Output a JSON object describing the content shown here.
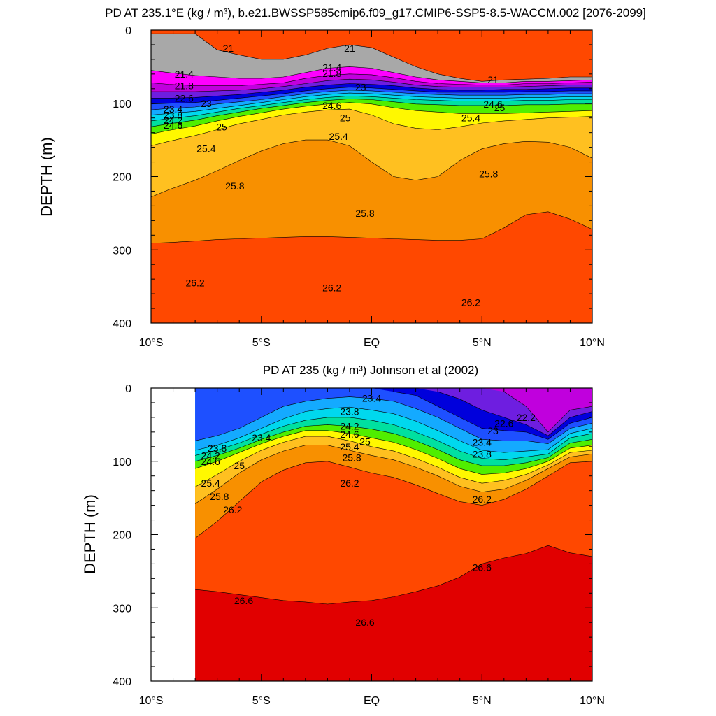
{
  "chart_data": [
    {
      "type": "contour",
      "title": "PD AT 235.1°E (kg / m³), b.e21.BWSSP585cmip6.f09_g17.CMIP6-SSP5-8.5-WACCM.002 [2076-2099]",
      "ylabel": "DEPTH (m)",
      "xlabel": "",
      "xlim": [
        -10,
        10
      ],
      "ylim": [
        0,
        400
      ],
      "y_inverted": true,
      "x_ticks": [
        {
          "v": -10,
          "label": "10°S"
        },
        {
          "v": -5,
          "label": "5°S"
        },
        {
          "v": 0,
          "label": "EQ"
        },
        {
          "v": 5,
          "label": "5°N"
        },
        {
          "v": 10,
          "label": "10°N"
        }
      ],
      "y_ticks": [
        0,
        100,
        200,
        300,
        400
      ],
      "x": [
        -10,
        -9.2,
        -8,
        -7,
        -6,
        -5,
        -4,
        -3,
        -2,
        -1,
        0,
        1,
        2,
        3,
        4,
        5,
        6,
        7,
        8,
        9,
        10
      ],
      "surface_depth": [
        5,
        5,
        5,
        27,
        34,
        40,
        40,
        34,
        25,
        20,
        24,
        37,
        50,
        60,
        66,
        70,
        68,
        67,
        66,
        64,
        64
      ],
      "contour_levels": [
        21,
        21.4,
        21.8,
        22.2,
        22.6,
        23,
        23.4,
        23.8,
        24.2,
        24.6,
        25,
        25.4,
        25.8,
        26.2
      ],
      "isopycnal_depths": {
        "21": [
          5,
          5,
          5,
          27,
          34,
          40,
          40,
          34,
          25,
          20,
          24,
          37,
          50,
          60,
          66,
          70,
          68,
          67,
          66,
          64,
          64
        ],
        "21.4": [
          55,
          58,
          62,
          64,
          66,
          66,
          64,
          58,
          52,
          50,
          52,
          58,
          64,
          68,
          70,
          72,
          72,
          70,
          70,
          69,
          68
        ],
        "21.8": [
          72,
          74,
          76,
          76,
          76,
          74,
          72,
          66,
          62,
          60,
          61,
          65,
          70,
          73,
          74,
          75,
          75,
          73,
          73,
          72,
          71
        ],
        "22.2": [
          84,
          84,
          84,
          83,
          82,
          80,
          77,
          73,
          69,
          67,
          68,
          71,
          75,
          77,
          78,
          78,
          78,
          77,
          76,
          75,
          75
        ],
        "22.6": [
          93,
          93,
          92,
          90,
          88,
          85,
          82,
          78,
          75,
          73,
          74,
          76,
          79,
          81,
          82,
          82,
          81,
          81,
          80,
          79,
          79
        ],
        "23": [
          101,
          100,
          99,
          96,
          93,
          90,
          87,
          83,
          80,
          78,
          79,
          81,
          83,
          85,
          85,
          85,
          85,
          84,
          84,
          83,
          83
        ],
        "23.4": [
          109,
          107,
          105,
          101,
          98,
          95,
          91,
          87,
          84,
          82,
          83,
          85,
          87,
          88,
          89,
          89,
          89,
          88,
          88,
          87,
          87
        ],
        "23.8": [
          116,
          114,
          111,
          107,
          103,
          99,
          95,
          91,
          88,
          86,
          87,
          89,
          91,
          92,
          93,
          93,
          93,
          92,
          92,
          91,
          91
        ],
        "24.2": [
          124,
          121,
          117,
          112,
          107,
          103,
          99,
          95,
          92,
          90,
          91,
          93,
          95,
          96,
          97,
          97,
          97,
          96,
          96,
          95,
          95
        ],
        "24.6": [
          132,
          128,
          123,
          117,
          112,
          107,
          103,
          99,
          96,
          94,
          95,
          98,
          101,
          102,
          103,
          103,
          103,
          102,
          102,
          101,
          101
        ],
        "25": [
          142,
          137,
          131,
          124,
          118,
          113,
          108,
          104,
          101,
          99,
          101,
          106,
          110,
          112,
          114,
          114,
          114,
          113,
          112,
          111,
          110
        ],
        "25.4": [
          158,
          152,
          144,
          136,
          128,
          122,
          116,
          112,
          109,
          108,
          116,
          128,
          134,
          136,
          132,
          127,
          124,
          122,
          120,
          119,
          118
        ],
        "25.8": [
          228,
          218,
          205,
          192,
          178,
          165,
          155,
          150,
          150,
          158,
          180,
          200,
          205,
          200,
          178,
          162,
          155,
          152,
          153,
          160,
          175
        ],
        "26.2": [
          291,
          290,
          288,
          286,
          285,
          284,
          283,
          282,
          282,
          283,
          284,
          285,
          286,
          287,
          287,
          285,
          270,
          252,
          248,
          258,
          272
        ]
      },
      "labels": [
        {
          "x": -6.5,
          "y": 25,
          "text": "21"
        },
        {
          "x": -1,
          "y": 25,
          "text": "21"
        },
        {
          "x": 5.5,
          "y": 68,
          "text": "21"
        },
        {
          "x": -8.5,
          "y": 60,
          "text": "21.4"
        },
        {
          "x": -1.8,
          "y": 51,
          "text": "21.4"
        },
        {
          "x": -8.5,
          "y": 76,
          "text": "21.8"
        },
        {
          "x": -1.8,
          "y": 59,
          "text": "21.8"
        },
        {
          "x": -8.5,
          "y": 93,
          "text": "22.6"
        },
        {
          "x": -7.5,
          "y": 100,
          "text": "23"
        },
        {
          "x": -0.5,
          "y": 78,
          "text": "23"
        },
        {
          "x": -9,
          "y": 108,
          "text": "23.4"
        },
        {
          "x": -9,
          "y": 116,
          "text": "23.8"
        },
        {
          "x": -9,
          "y": 123,
          "text": "24.2"
        },
        {
          "x": -9,
          "y": 130,
          "text": "24.6"
        },
        {
          "x": -1.8,
          "y": 103,
          "text": "24.6"
        },
        {
          "x": 5.5,
          "y": 101,
          "text": "24.6"
        },
        {
          "x": -6.8,
          "y": 132,
          "text": "25"
        },
        {
          "x": -1.2,
          "y": 120,
          "text": "25"
        },
        {
          "x": 5.8,
          "y": 106,
          "text": "25"
        },
        {
          "x": -7.5,
          "y": 162,
          "text": "25.4"
        },
        {
          "x": -1.5,
          "y": 145,
          "text": "25.4"
        },
        {
          "x": 4.5,
          "y": 120,
          "text": "25.4"
        },
        {
          "x": -6.2,
          "y": 213,
          "text": "25.8"
        },
        {
          "x": -0.3,
          "y": 250,
          "text": "25.8"
        },
        {
          "x": 5.3,
          "y": 196,
          "text": "25.8"
        },
        {
          "x": -8,
          "y": 345,
          "text": "26.2"
        },
        {
          "x": -1.8,
          "y": 352,
          "text": "26.2"
        },
        {
          "x": 4.5,
          "y": 372,
          "text": "26.2"
        }
      ]
    },
    {
      "type": "contour",
      "title": "PD AT 235 (kg / m³) Johnson et al (2002)",
      "ylabel": "DEPTH (m)",
      "xlabel": "",
      "xlim": [
        -10,
        10
      ],
      "ylim": [
        0,
        400
      ],
      "y_inverted": true,
      "x_ticks": [
        {
          "v": -10,
          "label": "10°S"
        },
        {
          "v": -5,
          "label": "5°S"
        },
        {
          "v": 0,
          "label": "EQ"
        },
        {
          "v": 5,
          "label": "5°N"
        },
        {
          "v": 10,
          "label": "10°N"
        }
      ],
      "y_ticks": [
        0,
        100,
        200,
        300,
        400
      ],
      "data_xlim": [
        -8,
        10
      ],
      "x": [
        -8,
        -7,
        -6,
        -5,
        -4,
        -3,
        -2,
        -1,
        0,
        1,
        2,
        3,
        4,
        5,
        6,
        7,
        8,
        9,
        10
      ],
      "contour_levels": [
        22.2,
        22.6,
        23,
        23.4,
        23.8,
        24.2,
        24.6,
        25,
        25.4,
        25.8,
        26.2,
        26.6
      ],
      "isopycnal_depths": {
        "22.2": [
          null,
          null,
          null,
          null,
          null,
          null,
          null,
          null,
          null,
          null,
          null,
          null,
          null,
          null,
          5,
          25,
          60,
          30,
          25
        ],
        "22.6": [
          null,
          null,
          null,
          null,
          null,
          null,
          null,
          null,
          null,
          null,
          null,
          5,
          15,
          30,
          40,
          50,
          65,
          40,
          32
        ],
        "23": [
          null,
          null,
          null,
          null,
          null,
          null,
          null,
          null,
          null,
          5,
          10,
          25,
          40,
          55,
          58,
          60,
          70,
          48,
          40
        ],
        "23.4": [
          72,
          65,
          55,
          40,
          25,
          18,
          14,
          12,
          14,
          18,
          28,
          40,
          55,
          70,
          72,
          72,
          76,
          55,
          48
        ],
        "23.8": [
          85,
          78,
          68,
          55,
          42,
          32,
          28,
          26,
          30,
          35,
          45,
          58,
          72,
          85,
          88,
          86,
          84,
          62,
          55
        ],
        "24.2": [
          92,
          85,
          75,
          63,
          52,
          44,
          40,
          40,
          44,
          50,
          60,
          72,
          86,
          96,
          98,
          94,
          90,
          68,
          62
        ],
        "24.6": [
          100,
          92,
          82,
          70,
          60,
          52,
          50,
          52,
          56,
          62,
          72,
          84,
          98,
          106,
          106,
          102,
          95,
          75,
          70
        ],
        "25": [
          110,
          100,
          88,
          76,
          66,
          58,
          58,
          62,
          68,
          74,
          84,
          96,
          110,
          118,
          116,
          110,
          100,
          82,
          78
        ],
        "25.4": [
          135,
          118,
          100,
          85,
          74,
          66,
          66,
          72,
          80,
          86,
          96,
          108,
          122,
          130,
          126,
          118,
          105,
          88,
          85
        ],
        "25.8": [
          158,
          138,
          116,
          98,
          86,
          78,
          78,
          85,
          92,
          98,
          108,
          120,
          134,
          142,
          138,
          126,
          110,
          94,
          90
        ],
        "26.2": [
          205,
          182,
          155,
          128,
          112,
          102,
          100,
          108,
          116,
          122,
          132,
          144,
          155,
          160,
          152,
          138,
          120,
          102,
          100
        ],
        "26.6": [
          275,
          278,
          282,
          286,
          290,
          292,
          295,
          292,
          290,
          285,
          278,
          270,
          258,
          240,
          232,
          226,
          215,
          225,
          230
        ]
      },
      "labels": [
        {
          "x": -5,
          "y": 68,
          "text": "23.4"
        },
        {
          "x": 0,
          "y": 14,
          "text": "23.4"
        },
        {
          "x": 5,
          "y": 74,
          "text": "23.4"
        },
        {
          "x": -7,
          "y": 82,
          "text": "23.8"
        },
        {
          "x": -1,
          "y": 32,
          "text": "23.8"
        },
        {
          "x": 5,
          "y": 90,
          "text": "23.8"
        },
        {
          "x": -7.3,
          "y": 92,
          "text": "24.2"
        },
        {
          "x": -1,
          "y": 52,
          "text": "24.2"
        },
        {
          "x": -7.3,
          "y": 100,
          "text": "24.6"
        },
        {
          "x": -1,
          "y": 63,
          "text": "24.6"
        },
        {
          "x": -6,
          "y": 106,
          "text": "25"
        },
        {
          "x": -0.3,
          "y": 73,
          "text": "25"
        },
        {
          "x": -7.3,
          "y": 130,
          "text": "25.4"
        },
        {
          "x": -1,
          "y": 80,
          "text": "25.4"
        },
        {
          "x": -6.9,
          "y": 148,
          "text": "25.8"
        },
        {
          "x": -0.9,
          "y": 95,
          "text": "25.8"
        },
        {
          "x": -6.3,
          "y": 166,
          "text": "26.2"
        },
        {
          "x": -1,
          "y": 130,
          "text": "26.2"
        },
        {
          "x": 5,
          "y": 152,
          "text": "26.2"
        },
        {
          "x": -5.8,
          "y": 290,
          "text": "26.6"
        },
        {
          "x": -0.3,
          "y": 320,
          "text": "26.6"
        },
        {
          "x": 5,
          "y": 245,
          "text": "26.6"
        },
        {
          "x": 6,
          "y": 48,
          "text": "22.6"
        },
        {
          "x": 5.5,
          "y": 58,
          "text": "23"
        },
        {
          "x": 7,
          "y": 40,
          "text": "22.2"
        }
      ]
    }
  ]
}
